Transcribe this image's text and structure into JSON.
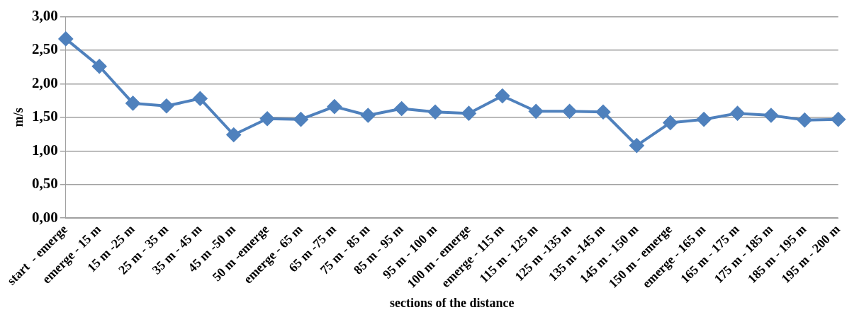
{
  "chart_data": {
    "type": "line",
    "xlabel": "sections of the distance",
    "ylabel": "m/s",
    "categories": [
      "start  - emerge",
      "emerge - 15 m",
      "15 m -25 m",
      "25 m - 35 m",
      "35 m - 45 m",
      "45 m -50 m",
      "50 m -emerge",
      "emerge - 65 m",
      "65 m -75 m",
      "75 m - 85 m",
      "85 m - 95 m",
      "95 m - 100 m",
      "100 m - emerge",
      "emerge - 115 m",
      "115 m - 125 m",
      "125 m -135 m",
      "135 m -145 m",
      "145 m - 150 m",
      "150 m - emerge",
      "emerge - 165 m",
      "165 m - 175 m",
      "175 m - 185 m",
      "185 m - 195 m",
      "195 m - 200 m"
    ],
    "series": [
      {
        "color": "#4f81bd",
        "values": [
          2.67,
          2.26,
          1.71,
          1.67,
          1.78,
          1.24,
          1.48,
          1.47,
          1.66,
          1.53,
          1.63,
          1.58,
          1.56,
          1.82,
          1.59,
          1.59,
          1.58,
          1.08,
          1.42,
          1.47,
          1.56,
          1.53,
          1.46,
          1.47
        ]
      }
    ],
    "ylim": [
      0,
      3
    ],
    "yticks": [
      {
        "value": 0,
        "label": "0,00"
      },
      {
        "value": 0.5,
        "label": "0,50"
      },
      {
        "value": 1,
        "label": "1,00"
      },
      {
        "value": 1.5,
        "label": "1,50"
      },
      {
        "value": 2,
        "label": "2,00"
      },
      {
        "value": 2.5,
        "label": "2,50"
      },
      {
        "value": 3,
        "label": "3,00"
      }
    ],
    "grid": "y",
    "legend": false,
    "marker": "diamond",
    "line_style": "solid"
  }
}
